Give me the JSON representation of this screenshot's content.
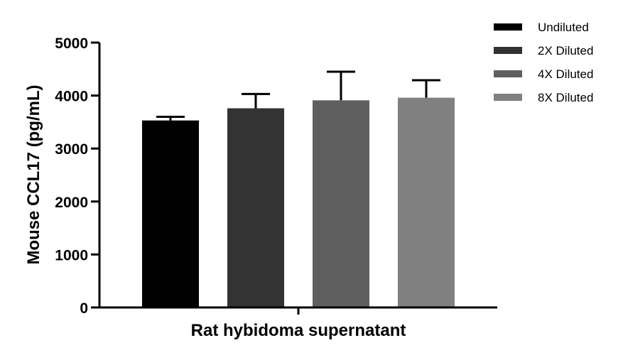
{
  "chart_data": {
    "type": "bar",
    "title": "",
    "xlabel": "Rat hybidoma supernatant",
    "ylabel": "Mouse CCL17 (pg/mL)",
    "ylim": [
      0,
      5000
    ],
    "yticks": [
      0,
      1000,
      2000,
      3000,
      4000,
      5000
    ],
    "yticks_labels": [
      "0",
      "1000",
      "2000",
      "3000",
      "4000",
      "5000"
    ],
    "legend_position": "top-right",
    "series": [
      {
        "name": "Undiluted",
        "value": 3530,
        "error": 70,
        "color": "#000000"
      },
      {
        "name": "2X Diluted",
        "value": 3760,
        "error": 270,
        "color": "#333333"
      },
      {
        "name": "4X Diluted",
        "value": 3910,
        "error": 540,
        "color": "#5f5f5f"
      },
      {
        "name": "8X Diluted",
        "value": 3960,
        "error": 330,
        "color": "#808080"
      }
    ]
  }
}
